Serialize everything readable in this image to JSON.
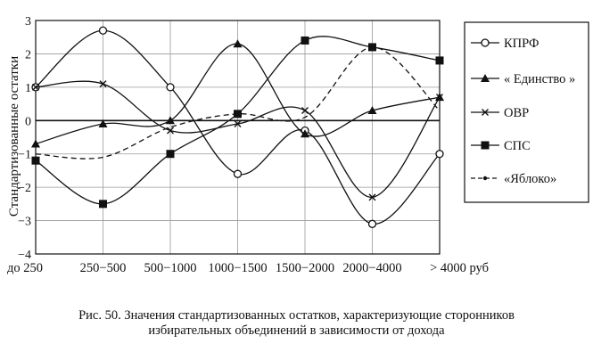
{
  "chart_data": {
    "type": "line",
    "categories": [
      "до 250",
      "250−500",
      "500−1000",
      "1000−1500",
      "1500−2000",
      "2000−4000",
      "> 4000 руб"
    ],
    "ylabel": "Стандартизованные остатки",
    "ylim": [
      -4,
      3
    ],
    "yticks": [
      -4,
      -3,
      -2,
      -1,
      0,
      1,
      2,
      3
    ],
    "grid": true,
    "legend_position": "right",
    "series": [
      {
        "name": "КПРФ",
        "values": [
          1.0,
          2.7,
          1.0,
          -1.6,
          -0.3,
          -3.1,
          -1.0
        ],
        "marker": "circle-open",
        "dash": "solid"
      },
      {
        "name": "« Единство »",
        "values": [
          -0.7,
          -0.1,
          0.0,
          2.3,
          -0.4,
          0.3,
          0.7
        ],
        "marker": "triangle",
        "dash": "solid"
      },
      {
        "name": "ОВР",
        "values": [
          1.0,
          1.1,
          -0.3,
          -0.1,
          0.3,
          -2.3,
          0.7
        ],
        "marker": "x",
        "dash": "solid"
      },
      {
        "name": "СПС",
        "values": [
          -1.2,
          -2.5,
          -1.0,
          0.2,
          2.4,
          2.2,
          1.8
        ],
        "marker": "square",
        "dash": "solid"
      },
      {
        "name": "«Яблоко»",
        "values": [
          -1.0,
          -1.1,
          -0.2,
          0.2,
          0.1,
          2.2,
          0.3
        ],
        "marker": "dot",
        "dash": "dashed"
      }
    ]
  },
  "caption": {
    "line1": "Рис. 50. Значения стандартизованных остатков, характеризующие сторонников",
    "line2": "избирательных объединений   в зависимости от дохода"
  }
}
